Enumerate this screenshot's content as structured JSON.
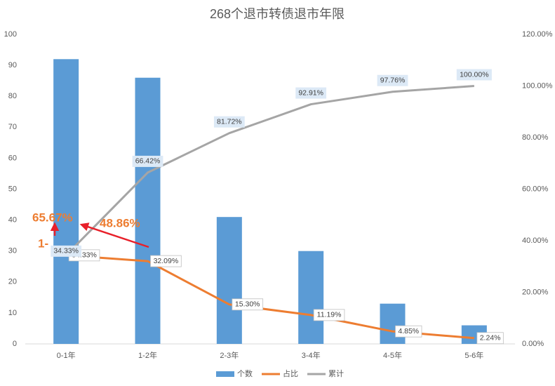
{
  "chart_data": {
    "type": "bar",
    "title": "268个退市转债退市年限",
    "categories": [
      "0-1年",
      "1-2年",
      "2-3年",
      "3-4年",
      "4-5年",
      "5-6年"
    ],
    "series": [
      {
        "name": "个数",
        "type": "bar",
        "color": "#5b9bd5",
        "values": [
          92,
          86,
          41,
          30,
          13,
          6
        ]
      },
      {
        "name": "占比",
        "type": "line",
        "axis": "y2",
        "color": "#ed7d31",
        "values": [
          34.33,
          32.09,
          15.3,
          11.19,
          4.85,
          2.24
        ],
        "value_labels": [
          "34.33%",
          "32.09%",
          "15.30%",
          "11.19%",
          "4.85%",
          "2.24%"
        ]
      },
      {
        "name": "累计",
        "type": "line",
        "axis": "y2",
        "color": "#a5a5a5",
        "values": [
          34.33,
          66.42,
          81.72,
          92.91,
          97.76,
          100.0
        ],
        "value_labels": [
          "34.33%",
          "66.42%",
          "81.72%",
          "92.91%",
          "97.76%",
          "100.00%"
        ]
      }
    ],
    "ylim": [
      0,
      100
    ],
    "yticks": [
      0,
      10,
      20,
      30,
      40,
      50,
      60,
      70,
      80,
      90,
      100
    ],
    "y2lim": [
      0,
      120
    ],
    "y2ticks": [
      {
        "value": 0,
        "label": "0.00%"
      },
      {
        "value": 20,
        "label": "20.00%"
      },
      {
        "value": 40,
        "label": "40.00%"
      },
      {
        "value": 60,
        "label": "60.00%"
      },
      {
        "value": 80,
        "label": "80.00%"
      },
      {
        "value": 100,
        "label": "100.00%"
      },
      {
        "value": 120,
        "label": "120.00%"
      }
    ],
    "grid": false,
    "legend": "bottom",
    "annotations": [
      {
        "text": "65.67%",
        "color": "#ed7d31"
      },
      {
        "text": "48.86%",
        "color": "#ed7d31"
      },
      {
        "text": "1-",
        "color": "#ed7d31"
      }
    ]
  }
}
